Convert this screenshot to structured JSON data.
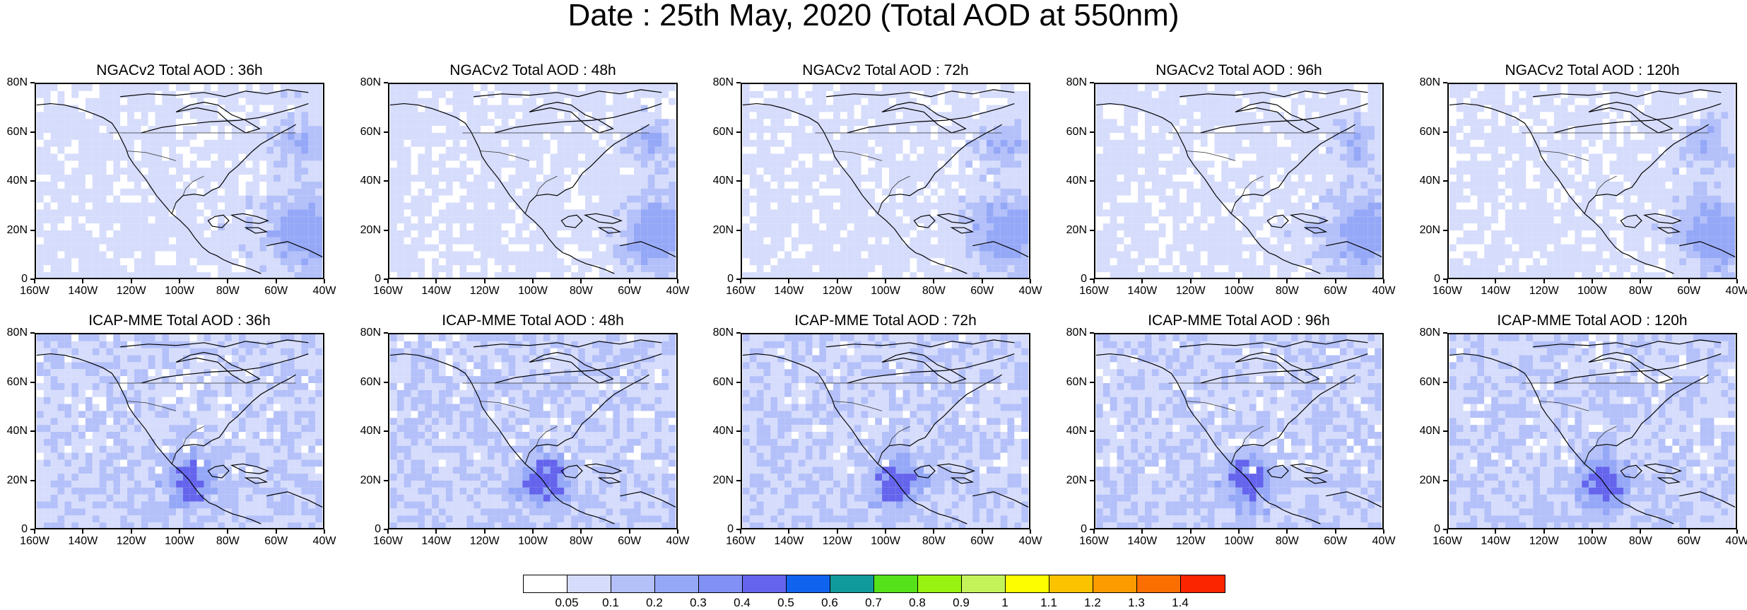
{
  "title": "Date : 25th May, 2020 (Total AOD at 550nm)",
  "panels": [
    {
      "title": "NGACv2 Total AOD : 36h"
    },
    {
      "title": "NGACv2 Total AOD : 48h"
    },
    {
      "title": "NGACv2 Total AOD : 72h"
    },
    {
      "title": "NGACv2 Total AOD : 96h"
    },
    {
      "title": "NGACv2 Total AOD : 120h"
    },
    {
      "title": "ICAP-MME Total AOD : 36h"
    },
    {
      "title": "ICAP-MME Total AOD : 48h"
    },
    {
      "title": "ICAP-MME Total AOD : 72h"
    },
    {
      "title": "ICAP-MME Total AOD : 96h"
    },
    {
      "title": "ICAP-MME Total AOD : 120h"
    }
  ],
  "lat_ticks": [
    "80N",
    "60N",
    "40N",
    "20N",
    "0"
  ],
  "lon_ticks": [
    "160W",
    "140W",
    "120W",
    "100W",
    "80W",
    "60W",
    "40W"
  ],
  "colorbar": {
    "labels": [
      "0.05",
      "0.1",
      "0.2",
      "0.3",
      "0.4",
      "0.5",
      "0.6",
      "0.7",
      "0.8",
      "0.9",
      "1",
      "1.1",
      "1.2",
      "1.3",
      "1.4"
    ],
    "colors": [
      "#ffffff",
      "#d6dcfb",
      "#b3c0f9",
      "#95a8f7",
      "#8090f4",
      "#6464ed",
      "#1063ee",
      "#12999a",
      "#55e21b",
      "#98f212",
      "#c4f25a",
      "#fdfd00",
      "#fbc200",
      "#fb9b00",
      "#fb6e00",
      "#fb2500"
    ]
  }
}
